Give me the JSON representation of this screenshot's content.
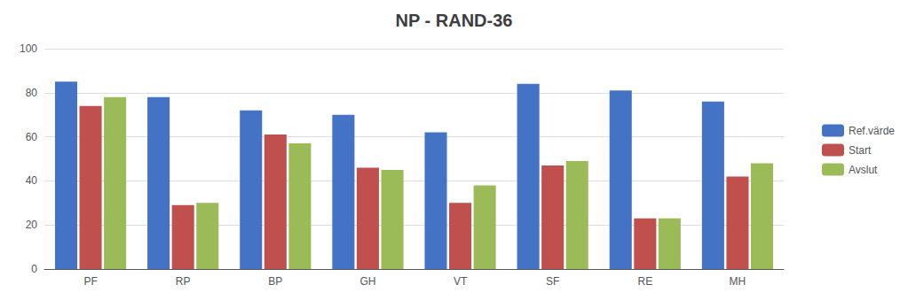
{
  "chart_data": {
    "type": "bar",
    "title": "NP - RAND-36",
    "categories": [
      "PF",
      "RP",
      "BP",
      "GH",
      "VT",
      "SF",
      "RE",
      "MH"
    ],
    "series": [
      {
        "name": "Ref.värde",
        "color": "#4472C4",
        "values": [
          85,
          78,
          72,
          70,
          62,
          84,
          81,
          76
        ]
      },
      {
        "name": "Start",
        "color": "#C0504D",
        "values": [
          74,
          29,
          61,
          46,
          30,
          47,
          23,
          42
        ]
      },
      {
        "name": "Avslut",
        "color": "#9BBB59",
        "values": [
          78,
          30,
          57,
          45,
          38,
          49,
          23,
          48
        ]
      }
    ],
    "ylim": [
      0,
      100
    ],
    "yticks": [
      0,
      20,
      40,
      60,
      80,
      100
    ],
    "grid": true,
    "legend": "right"
  }
}
